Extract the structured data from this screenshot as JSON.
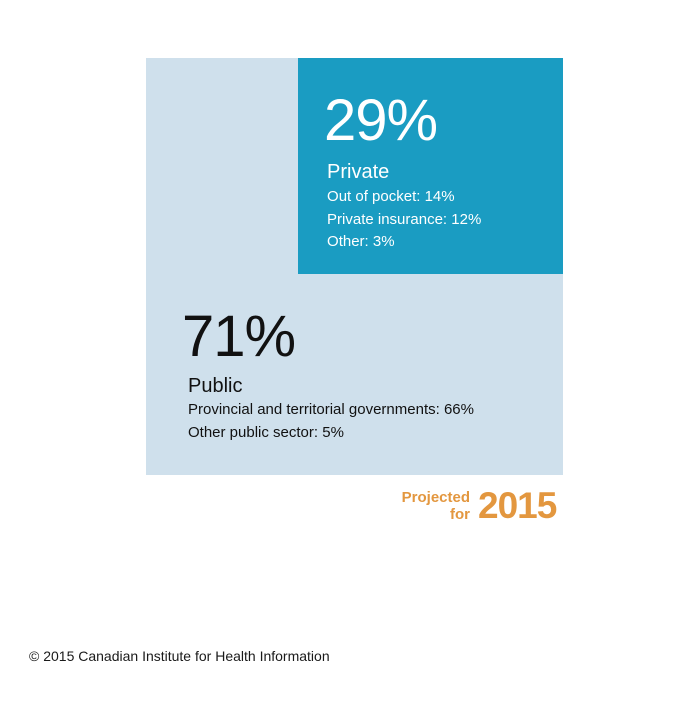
{
  "chart_data": {
    "type": "area",
    "series": [
      {
        "name": "Private",
        "value": 29,
        "value_label": "29%",
        "color": "#1a9cc2",
        "breakdown": [
          {
            "label": "Out of pocket: 14%",
            "value": 14
          },
          {
            "label": "Private insurance: 12%",
            "value": 12
          },
          {
            "label": "Other: 3%",
            "value": 3
          }
        ]
      },
      {
        "name": "Public",
        "value": 71,
        "value_label": "71%",
        "color": "#cfe0ec",
        "breakdown": [
          {
            "label": "Provincial and territorial governments: 66%",
            "value": 66
          },
          {
            "label": "Other public sector: 5%",
            "value": 5
          }
        ]
      }
    ]
  },
  "projection": {
    "line1": "Projected",
    "line2": "for",
    "year": "2015",
    "color": "#e3973f"
  },
  "footer": {
    "copyright": "© 2015 Canadian Institute for Health Information"
  }
}
